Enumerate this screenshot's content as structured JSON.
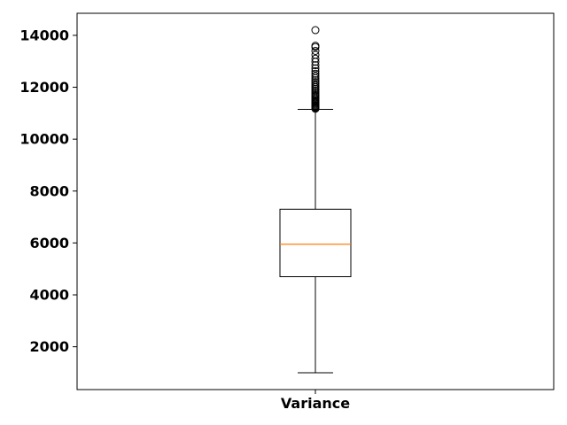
{
  "chart_data": {
    "type": "boxplot",
    "title": "",
    "xlabel": "",
    "ylabel": "",
    "categories": [
      "Variance"
    ],
    "ylim": [
      350,
      14850
    ],
    "yticks": [
      2000,
      4000,
      6000,
      8000,
      10000,
      12000,
      14000
    ],
    "yticklabels": [
      "2000",
      "4000",
      "6000",
      "8000",
      "10000",
      "12000",
      "14000"
    ],
    "grid": false,
    "legend": "none",
    "box": {
      "whisker_low": 1000,
      "q1": 4700,
      "median": 5950,
      "q3": 7300,
      "whisker_high": 11150
    },
    "outliers": [
      11170,
      11200,
      11230,
      11260,
      11300,
      11340,
      11380,
      11420,
      11460,
      11500,
      11550,
      11600,
      11650,
      11700,
      11760,
      11820,
      11880,
      11940,
      12000,
      12060,
      12130,
      12200,
      12270,
      12350,
      12430,
      12520,
      12620,
      12730,
      12850,
      12980,
      13100,
      13250,
      13400,
      13550,
      13600,
      14200
    ],
    "colors": {
      "box": "#000000",
      "median": "#ff7f0e",
      "outlier": "#000000"
    }
  }
}
